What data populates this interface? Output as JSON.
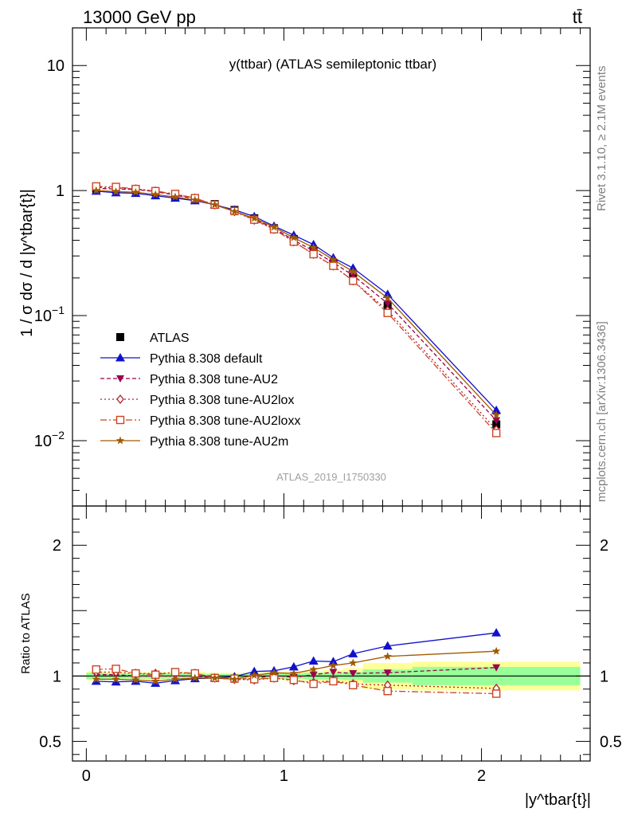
{
  "header": {
    "left": "13000 GeV pp",
    "right": "tt̄"
  },
  "side_labels": {
    "rivet": "Rivet 3.1.10, ≥ 2.1M events",
    "mcplots": "mcplots.cern.ch [arXiv:1306.3436]"
  },
  "colors": {
    "atlas": "#000000",
    "default": "#1111cc",
    "au2": "#99004d",
    "au2lox": "#b3202c",
    "au2loxx": "#cc4422",
    "au2m": "#a05a00",
    "band_inner": "#99ff99",
    "band_outer": "#ffff99"
  },
  "chart_data": [
    {
      "type": "line",
      "title": "y(ttbar) (ATLAS semileptonic ttbar)",
      "ylabel": "1 / σ dσ / d |y^tbar{t}|",
      "xlabel": "",
      "log_y": true,
      "ylim": [
        0.003,
        20
      ],
      "xlim": [
        -0.07,
        2.55
      ],
      "yticks": [
        {
          "value": 10,
          "label": "10"
        },
        {
          "value": 1,
          "label": "1"
        },
        {
          "value": 0.1,
          "label": "10^-1"
        },
        {
          "value": 0.01,
          "label": "10^-2"
        }
      ],
      "watermark": "ATLAS_2019_I1750330",
      "legend_position": "bottom-left",
      "x": [
        0.05,
        0.15,
        0.25,
        0.35,
        0.45,
        0.55,
        0.65,
        0.75,
        0.85,
        0.95,
        1.05,
        1.15,
        1.25,
        1.35,
        1.525,
        2.075
      ],
      "series": [
        {
          "name": "ATLAS",
          "key": "atlas",
          "marker": "square",
          "dash": "",
          "values": [
            1.03,
            1.02,
            1.01,
            0.97,
            0.91,
            0.85,
            0.78,
            0.7,
            0.6,
            0.5,
            0.41,
            0.33,
            0.26,
            0.205,
            0.12,
            0.0135
          ]
        },
        {
          "name": "Pythia 8.308 default",
          "key": "default",
          "marker": "triangle-up",
          "dash": "",
          "values": [
            0.99,
            0.96,
            0.95,
            0.91,
            0.87,
            0.83,
            0.77,
            0.7,
            0.62,
            0.52,
            0.44,
            0.37,
            0.29,
            0.24,
            0.148,
            0.0175
          ]
        },
        {
          "name": "Pythia 8.308 tune-AU2",
          "key": "au2",
          "marker": "triangle-down",
          "dash": "5,3",
          "values": [
            1.04,
            1.03,
            1.02,
            0.98,
            0.92,
            0.86,
            0.77,
            0.685,
            0.59,
            0.5,
            0.4,
            0.33,
            0.265,
            0.21,
            0.125,
            0.0145
          ]
        },
        {
          "name": "Pythia 8.308 tune-AU2lox",
          "key": "au2lox",
          "marker": "diamond-open",
          "dash": "2,3",
          "values": [
            1.06,
            1.05,
            1.03,
            0.99,
            0.93,
            0.87,
            0.77,
            0.68,
            0.58,
            0.49,
            0.39,
            0.31,
            0.25,
            0.19,
            0.11,
            0.0122
          ]
        },
        {
          "name": "Pythia 8.308 tune-AU2loxx",
          "key": "au2loxx",
          "marker": "square-open",
          "dash": "8,3,2,3",
          "values": [
            1.08,
            1.07,
            1.03,
            0.99,
            0.94,
            0.87,
            0.77,
            0.685,
            0.585,
            0.49,
            0.39,
            0.31,
            0.25,
            0.19,
            0.105,
            0.0115
          ]
        },
        {
          "name": "Pythia 8.308 tune-AU2m",
          "key": "au2m",
          "marker": "star",
          "dash": "",
          "values": [
            1.0,
            0.98,
            0.97,
            0.93,
            0.89,
            0.84,
            0.77,
            0.68,
            0.6,
            0.51,
            0.42,
            0.35,
            0.28,
            0.225,
            0.138,
            0.016
          ]
        }
      ]
    },
    {
      "type": "line",
      "ylabel": "Ratio to ATLAS",
      "xlabel": "|y^tbar{t}|",
      "ylim": [
        0.35,
        2.3
      ],
      "xlim": [
        -0.07,
        2.55
      ],
      "yticks": [
        {
          "value": 2,
          "label": "2"
        },
        {
          "value": 1,
          "label": "1"
        },
        {
          "value": 0.5,
          "label": "0.5"
        }
      ],
      "xticks": [
        {
          "value": 0,
          "label": "0"
        },
        {
          "value": 1,
          "label": "1"
        },
        {
          "value": 2,
          "label": "2"
        }
      ],
      "x": [
        0.05,
        0.15,
        0.25,
        0.35,
        0.45,
        0.55,
        0.65,
        0.75,
        0.85,
        0.95,
        1.05,
        1.15,
        1.25,
        1.35,
        1.525,
        2.075
      ],
      "band_edges": [
        0.0,
        0.1,
        0.2,
        0.3,
        0.4,
        0.5,
        0.6,
        0.7,
        0.8,
        0.9,
        1.0,
        1.1,
        1.2,
        1.3,
        1.4,
        1.65,
        2.5
      ],
      "band_inner": [
        0.025,
        0.02,
        0.02,
        0.02,
        0.02,
        0.02,
        0.015,
        0.015,
        0.015,
        0.02,
        0.02,
        0.025,
        0.025,
        0.03,
        0.05,
        0.07
      ],
      "band_outer": [
        0.035,
        0.03,
        0.03,
        0.03,
        0.03,
        0.03,
        0.025,
        0.025,
        0.025,
        0.03,
        0.035,
        0.04,
        0.045,
        0.06,
        0.1,
        0.11
      ],
      "series": [
        {
          "key": "default",
          "marker": "triangle-up",
          "dash": "",
          "values": [
            0.96,
            0.955,
            0.96,
            0.945,
            0.965,
            0.98,
            0.985,
            0.995,
            1.035,
            1.04,
            1.07,
            1.115,
            1.11,
            1.17,
            1.23,
            1.33
          ]
        },
        {
          "key": "au2",
          "marker": "triangle-down",
          "dash": "5,3",
          "values": [
            1.01,
            1.01,
            1.0,
            1.0,
            1.0,
            1.0,
            0.985,
            0.975,
            0.98,
            1.005,
            0.99,
            1.01,
            1.03,
            1.02,
            1.025,
            1.065
          ]
        },
        {
          "key": "au2lox",
          "marker": "diamond-open",
          "dash": "2,3",
          "values": [
            1.03,
            1.03,
            1.02,
            1.02,
            1.025,
            1.02,
            0.985,
            0.975,
            0.97,
            0.985,
            0.965,
            0.95,
            0.965,
            0.94,
            0.93,
            0.905
          ]
        },
        {
          "key": "au2loxx",
          "marker": "square-open",
          "dash": "8,3,2,3",
          "values": [
            1.05,
            1.055,
            1.02,
            1.01,
            1.03,
            1.02,
            0.985,
            0.98,
            0.975,
            0.985,
            0.97,
            0.94,
            0.96,
            0.93,
            0.885,
            0.865
          ]
        },
        {
          "key": "au2m",
          "marker": "star",
          "dash": "",
          "values": [
            0.975,
            0.975,
            0.97,
            0.96,
            0.975,
            0.985,
            0.985,
            0.975,
            1.005,
            1.025,
            1.02,
            1.05,
            1.08,
            1.1,
            1.15,
            1.19
          ]
        }
      ]
    }
  ]
}
